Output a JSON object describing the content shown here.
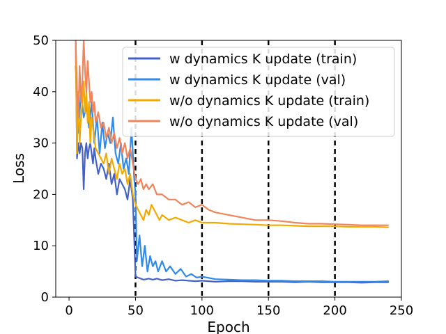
{
  "chart_data": {
    "type": "line",
    "title": "",
    "xlabel": "Epoch",
    "ylabel": "Loss",
    "xlim": [
      -10,
      250
    ],
    "ylim": [
      0,
      50
    ],
    "xticks": [
      0,
      50,
      100,
      150,
      200,
      250
    ],
    "yticks": [
      0,
      10,
      20,
      30,
      40,
      50
    ],
    "grid": false,
    "legend": "top-right",
    "vlines": [
      50,
      100,
      150,
      200
    ],
    "series": [
      {
        "name": "w dynamics K update (train)",
        "color": "#4462c6",
        "x": [
          5,
          6,
          7,
          8,
          9,
          10,
          11,
          12,
          13,
          14,
          15,
          16,
          17,
          18,
          19,
          20,
          22,
          24,
          26,
          28,
          30,
          32,
          34,
          36,
          38,
          40,
          42,
          44,
          46,
          48,
          50,
          52,
          54,
          56,
          58,
          60,
          63,
          66,
          70,
          75,
          80,
          85,
          90,
          95,
          100,
          110,
          120,
          130,
          140,
          150,
          160,
          170,
          180,
          190,
          200,
          210,
          220,
          230,
          240
        ],
        "y": [
          50,
          27,
          30,
          28,
          30,
          29,
          21,
          28,
          30,
          27,
          29,
          30,
          28,
          26,
          29,
          27,
          24,
          26,
          25,
          23,
          26,
          22,
          24,
          20,
          23,
          22,
          21,
          19,
          23,
          19,
          4,
          3.8,
          3.6,
          3.4,
          3.5,
          3.6,
          3.4,
          3.6,
          3.3,
          3.5,
          3.2,
          3.3,
          3.2,
          3.1,
          3.2,
          3.0,
          3.1,
          3.1,
          3.0,
          3.0,
          3.0,
          2.9,
          3.0,
          2.9,
          2.9,
          2.9,
          2.8,
          2.9,
          2.9
        ]
      },
      {
        "name": "w dynamics K update (val)",
        "color": "#2f8ae8",
        "x": [
          5,
          7,
          9,
          11,
          13,
          15,
          17,
          19,
          21,
          23,
          25,
          27,
          29,
          31,
          33,
          35,
          37,
          39,
          41,
          43,
          45,
          47,
          49,
          50,
          51,
          53,
          55,
          57,
          59,
          61,
          63,
          65,
          67,
          70,
          73,
          76,
          80,
          84,
          88,
          92,
          96,
          100,
          110,
          120,
          130,
          140,
          150,
          160,
          170,
          180,
          190,
          200,
          210,
          220,
          230,
          240
        ],
        "y": [
          45,
          32,
          40,
          35,
          37,
          33,
          38,
          30,
          35,
          28,
          34,
          29,
          32,
          30,
          35,
          28,
          26,
          30,
          25,
          27,
          24,
          33,
          23,
          20,
          7,
          12,
          6,
          10,
          5,
          8,
          6,
          7,
          5,
          7,
          5,
          6,
          4.5,
          5.5,
          4,
          4.5,
          3.8,
          4,
          3.5,
          3.4,
          3.3,
          3.3,
          3.2,
          3.2,
          3.1,
          3.1,
          3.1,
          3.0,
          3.0,
          3.0,
          3.0,
          3.1
        ]
      },
      {
        "name": "w/o dynamics K update (train)",
        "color": "#f2a900",
        "x": [
          5,
          6,
          7,
          8,
          9,
          10,
          11,
          12,
          13,
          14,
          15,
          16,
          17,
          18,
          19,
          20,
          22,
          24,
          26,
          28,
          30,
          32,
          34,
          36,
          38,
          40,
          42,
          44,
          46,
          48,
          50,
          52,
          54,
          56,
          58,
          60,
          62,
          64,
          66,
          68,
          70,
          75,
          80,
          85,
          90,
          95,
          100,
          110,
          120,
          130,
          140,
          150,
          160,
          170,
          180,
          190,
          200,
          210,
          220,
          230,
          240
        ],
        "y": [
          50,
          28,
          40,
          30,
          35,
          38,
          42,
          36,
          40,
          34,
          38,
          30,
          35,
          33,
          31,
          29,
          28,
          27,
          26,
          28,
          24,
          27,
          25,
          23,
          26,
          24,
          25,
          22,
          24,
          20,
          18,
          17,
          16,
          15,
          17,
          16,
          18,
          17,
          16,
          15,
          16,
          15,
          15.5,
          15,
          14.5,
          15,
          14.5,
          14.5,
          14.3,
          14.2,
          14.1,
          14.0,
          14.0,
          13.9,
          13.8,
          13.8,
          13.8,
          13.7,
          13.7,
          13.7,
          13.6
        ]
      },
      {
        "name": "w/o dynamics K update (val)",
        "color": "#f0845a",
        "x": [
          5,
          6,
          7,
          8,
          9,
          10,
          11,
          12,
          13,
          14,
          15,
          16,
          17,
          18,
          19,
          20,
          22,
          24,
          26,
          28,
          30,
          32,
          34,
          36,
          38,
          40,
          42,
          44,
          46,
          48,
          50,
          52,
          54,
          56,
          58,
          60,
          63,
          66,
          70,
          75,
          80,
          85,
          90,
          95,
          100,
          105,
          110,
          120,
          130,
          140,
          150,
          160,
          170,
          180,
          190,
          200,
          210,
          220,
          230,
          240
        ],
        "y": [
          50,
          40,
          35,
          45,
          38,
          42,
          50,
          44,
          40,
          46,
          42,
          38,
          40,
          36,
          38,
          34,
          36,
          33,
          34,
          31,
          33,
          30,
          32,
          29,
          31,
          28,
          30,
          27,
          29,
          26,
          23,
          22,
          23,
          21,
          22,
          21,
          22,
          20,
          20,
          19,
          19,
          18,
          18.5,
          17.5,
          18,
          17,
          16.5,
          16,
          15.5,
          15,
          15,
          14.8,
          14.5,
          14.3,
          14.3,
          14.2,
          14.1,
          14.0,
          14.0,
          14.0
        ]
      }
    ]
  }
}
